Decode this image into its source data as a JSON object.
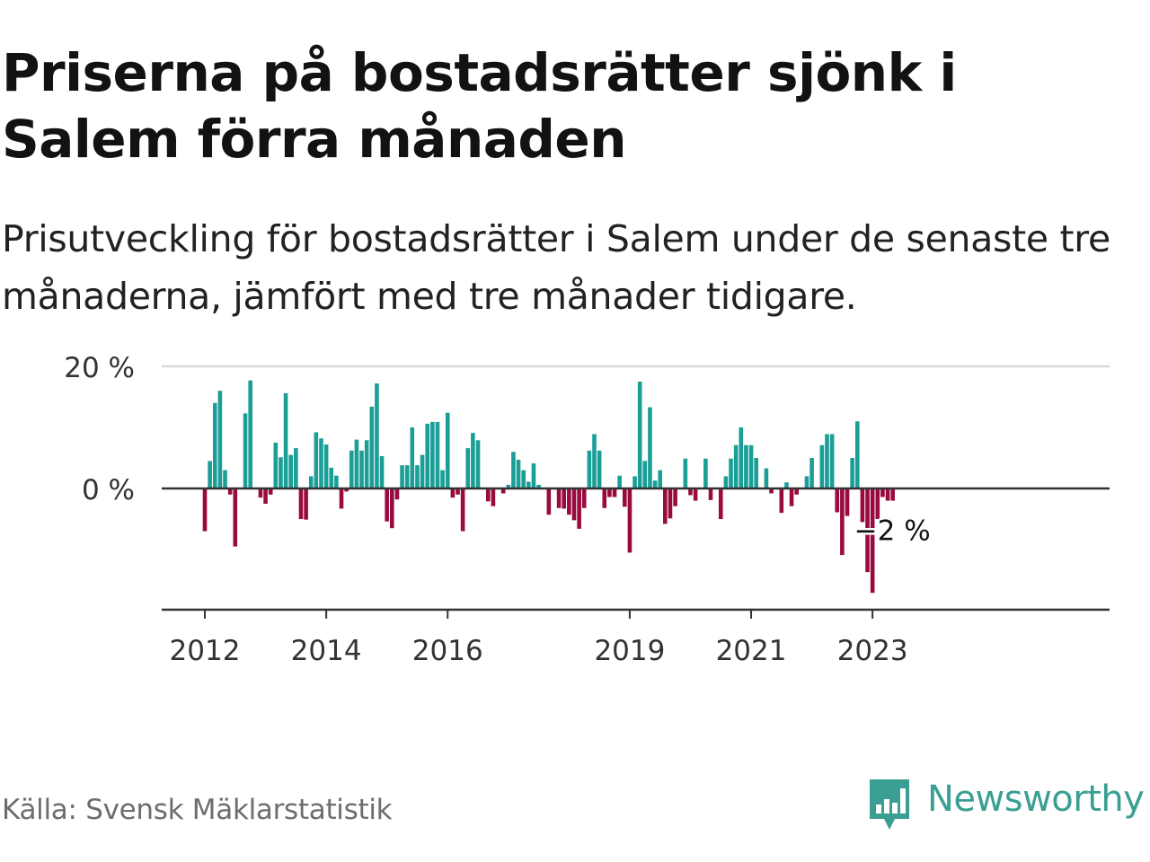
{
  "header": {
    "title": "Priserna på bostadsrätter sjönk i Salem förra månaden",
    "subtitle": "Prisutveckling för bostadsrätter i Salem under de senaste tre månaderna, jämfört med tre månader tidigare."
  },
  "footer": {
    "source": "Källa: Svensk Mäklarstatistik",
    "brand": "Newsworthy"
  },
  "colors": {
    "positive": "#1a9e96",
    "negative": "#990a3f",
    "brand": "#3a9f92",
    "grid": "#d9d9d9",
    "axis": "#333333"
  },
  "chart_data": {
    "type": "bar",
    "title": "Priserna på bostadsrätter sjönk i Salem förra månaden",
    "xlabel": "",
    "ylabel": "",
    "ylim": [
      -19,
      20
    ],
    "start": "2012-01",
    "unit": "%",
    "y_ticks": [
      {
        "value": 20,
        "label": "20 %"
      },
      {
        "value": 0,
        "label": "0 %"
      }
    ],
    "x_ticks": [
      {
        "year": 2012,
        "label": "2012"
      },
      {
        "year": 2014,
        "label": "2014"
      },
      {
        "year": 2016,
        "label": "2016"
      },
      {
        "year": 2019,
        "label": "2019"
      },
      {
        "year": 2021,
        "label": "2021"
      },
      {
        "year": 2023,
        "label": "2023"
      }
    ],
    "last_label": "−2 %",
    "values": [
      -7,
      4.5,
      14,
      16,
      3,
      -1,
      -9.5,
      0,
      12.3,
      17.7,
      0,
      -1.5,
      -2.5,
      -1,
      7.5,
      5.1,
      15.6,
      5.5,
      6.6,
      -5,
      -5.1,
      2,
      9.2,
      8.2,
      7.2,
      3.4,
      2.1,
      -3.3,
      -0.5,
      6.2,
      8,
      6.2,
      7.9,
      13.4,
      17.2,
      5.3,
      -5.4,
      -6.5,
      -1.8,
      3.8,
      3.8,
      10,
      3.8,
      5.5,
      10.6,
      10.9,
      10.9,
      3,
      12.4,
      -1.5,
      -1,
      -7,
      6.6,
      9.1,
      7.9,
      0,
      -2.1,
      -2.9,
      0,
      -0.8,
      0.6,
      6,
      4.7,
      3,
      1.1,
      4.1,
      0.6,
      0,
      -4.3,
      0,
      -3.2,
      -3.3,
      -4.3,
      -5.2,
      -6.6,
      -3.2,
      6.2,
      8.9,
      6.2,
      -3.2,
      -1.4,
      -1.4,
      2.1,
      -3,
      -10.5,
      2,
      17.5,
      4.5,
      13.3,
      1.3,
      3,
      -5.8,
      -4.9,
      -2.9,
      0,
      4.9,
      -1.1,
      -2,
      0,
      4.9,
      -1.9,
      0,
      -5,
      2,
      4.9,
      7.1,
      10,
      7.1,
      7.1,
      5,
      0,
      3.3,
      -0.8,
      0,
      -4,
      1,
      -2.9,
      -1,
      0,
      2,
      5,
      0,
      7.1,
      8.9,
      8.9,
      -3.9,
      -10.9,
      -4.5,
      5,
      11,
      -5.5,
      -13.7,
      -17.1,
      -5,
      -1.4,
      -2,
      -2
    ]
  }
}
